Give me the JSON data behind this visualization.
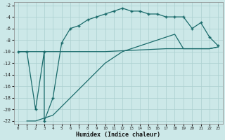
{
  "title": "",
  "xlabel": "Humidex (Indice chaleur)",
  "ylabel": "",
  "bg_color": "#cce8e8",
  "grid_color": "#aacfcf",
  "line_color": "#1a6b6b",
  "xlim": [
    -0.5,
    23.5
  ],
  "ylim": [
    -22.5,
    -1.5
  ],
  "yticks": [
    -22,
    -20,
    -18,
    -16,
    -14,
    -12,
    -10,
    -8,
    -6,
    -4,
    -2
  ],
  "xticks": [
    0,
    1,
    2,
    3,
    4,
    5,
    6,
    7,
    8,
    9,
    10,
    11,
    12,
    13,
    14,
    15,
    16,
    17,
    18,
    19,
    20,
    21,
    22,
    23
  ],
  "curve1_x": [
    0,
    1,
    2,
    3,
    3,
    4,
    5,
    6,
    7,
    8,
    9,
    10,
    11,
    12,
    13,
    14,
    15,
    16,
    17,
    18,
    19,
    20,
    21,
    22,
    23
  ],
  "curve1_y": [
    -10,
    -10,
    -20,
    -10,
    -22,
    -18,
    -8.5,
    -6,
    -5.5,
    -4.5,
    -4,
    -3.5,
    -3,
    -2.5,
    -3,
    -3,
    -3.5,
    -3.5,
    -4,
    -4,
    -4,
    -6,
    -5,
    -7.5,
    -9
  ],
  "curve2_x": [
    0,
    2,
    3,
    4,
    9,
    10,
    17,
    19,
    20,
    21,
    22,
    23
  ],
  "curve2_y": [
    -10,
    -10,
    -10,
    -10,
    -10,
    -10,
    -9.5,
    -9.5,
    -9.5,
    -9.5,
    -9.5,
    -9.2
  ],
  "curve3_x": [
    1,
    2,
    3,
    4,
    5,
    6,
    7,
    8,
    9,
    10,
    11,
    12,
    13,
    14,
    15,
    16,
    17,
    18,
    19,
    20,
    21,
    22,
    23
  ],
  "curve3_y": [
    -22,
    -22,
    -21.5,
    -21,
    -19.5,
    -18,
    -16.5,
    -15,
    -13.5,
    -12,
    -11,
    -10,
    -9.5,
    -9,
    -8.5,
    -8,
    -7.5,
    -7,
    -9.5,
    -9.5,
    -9.5,
    -9.5,
    -9.2
  ]
}
